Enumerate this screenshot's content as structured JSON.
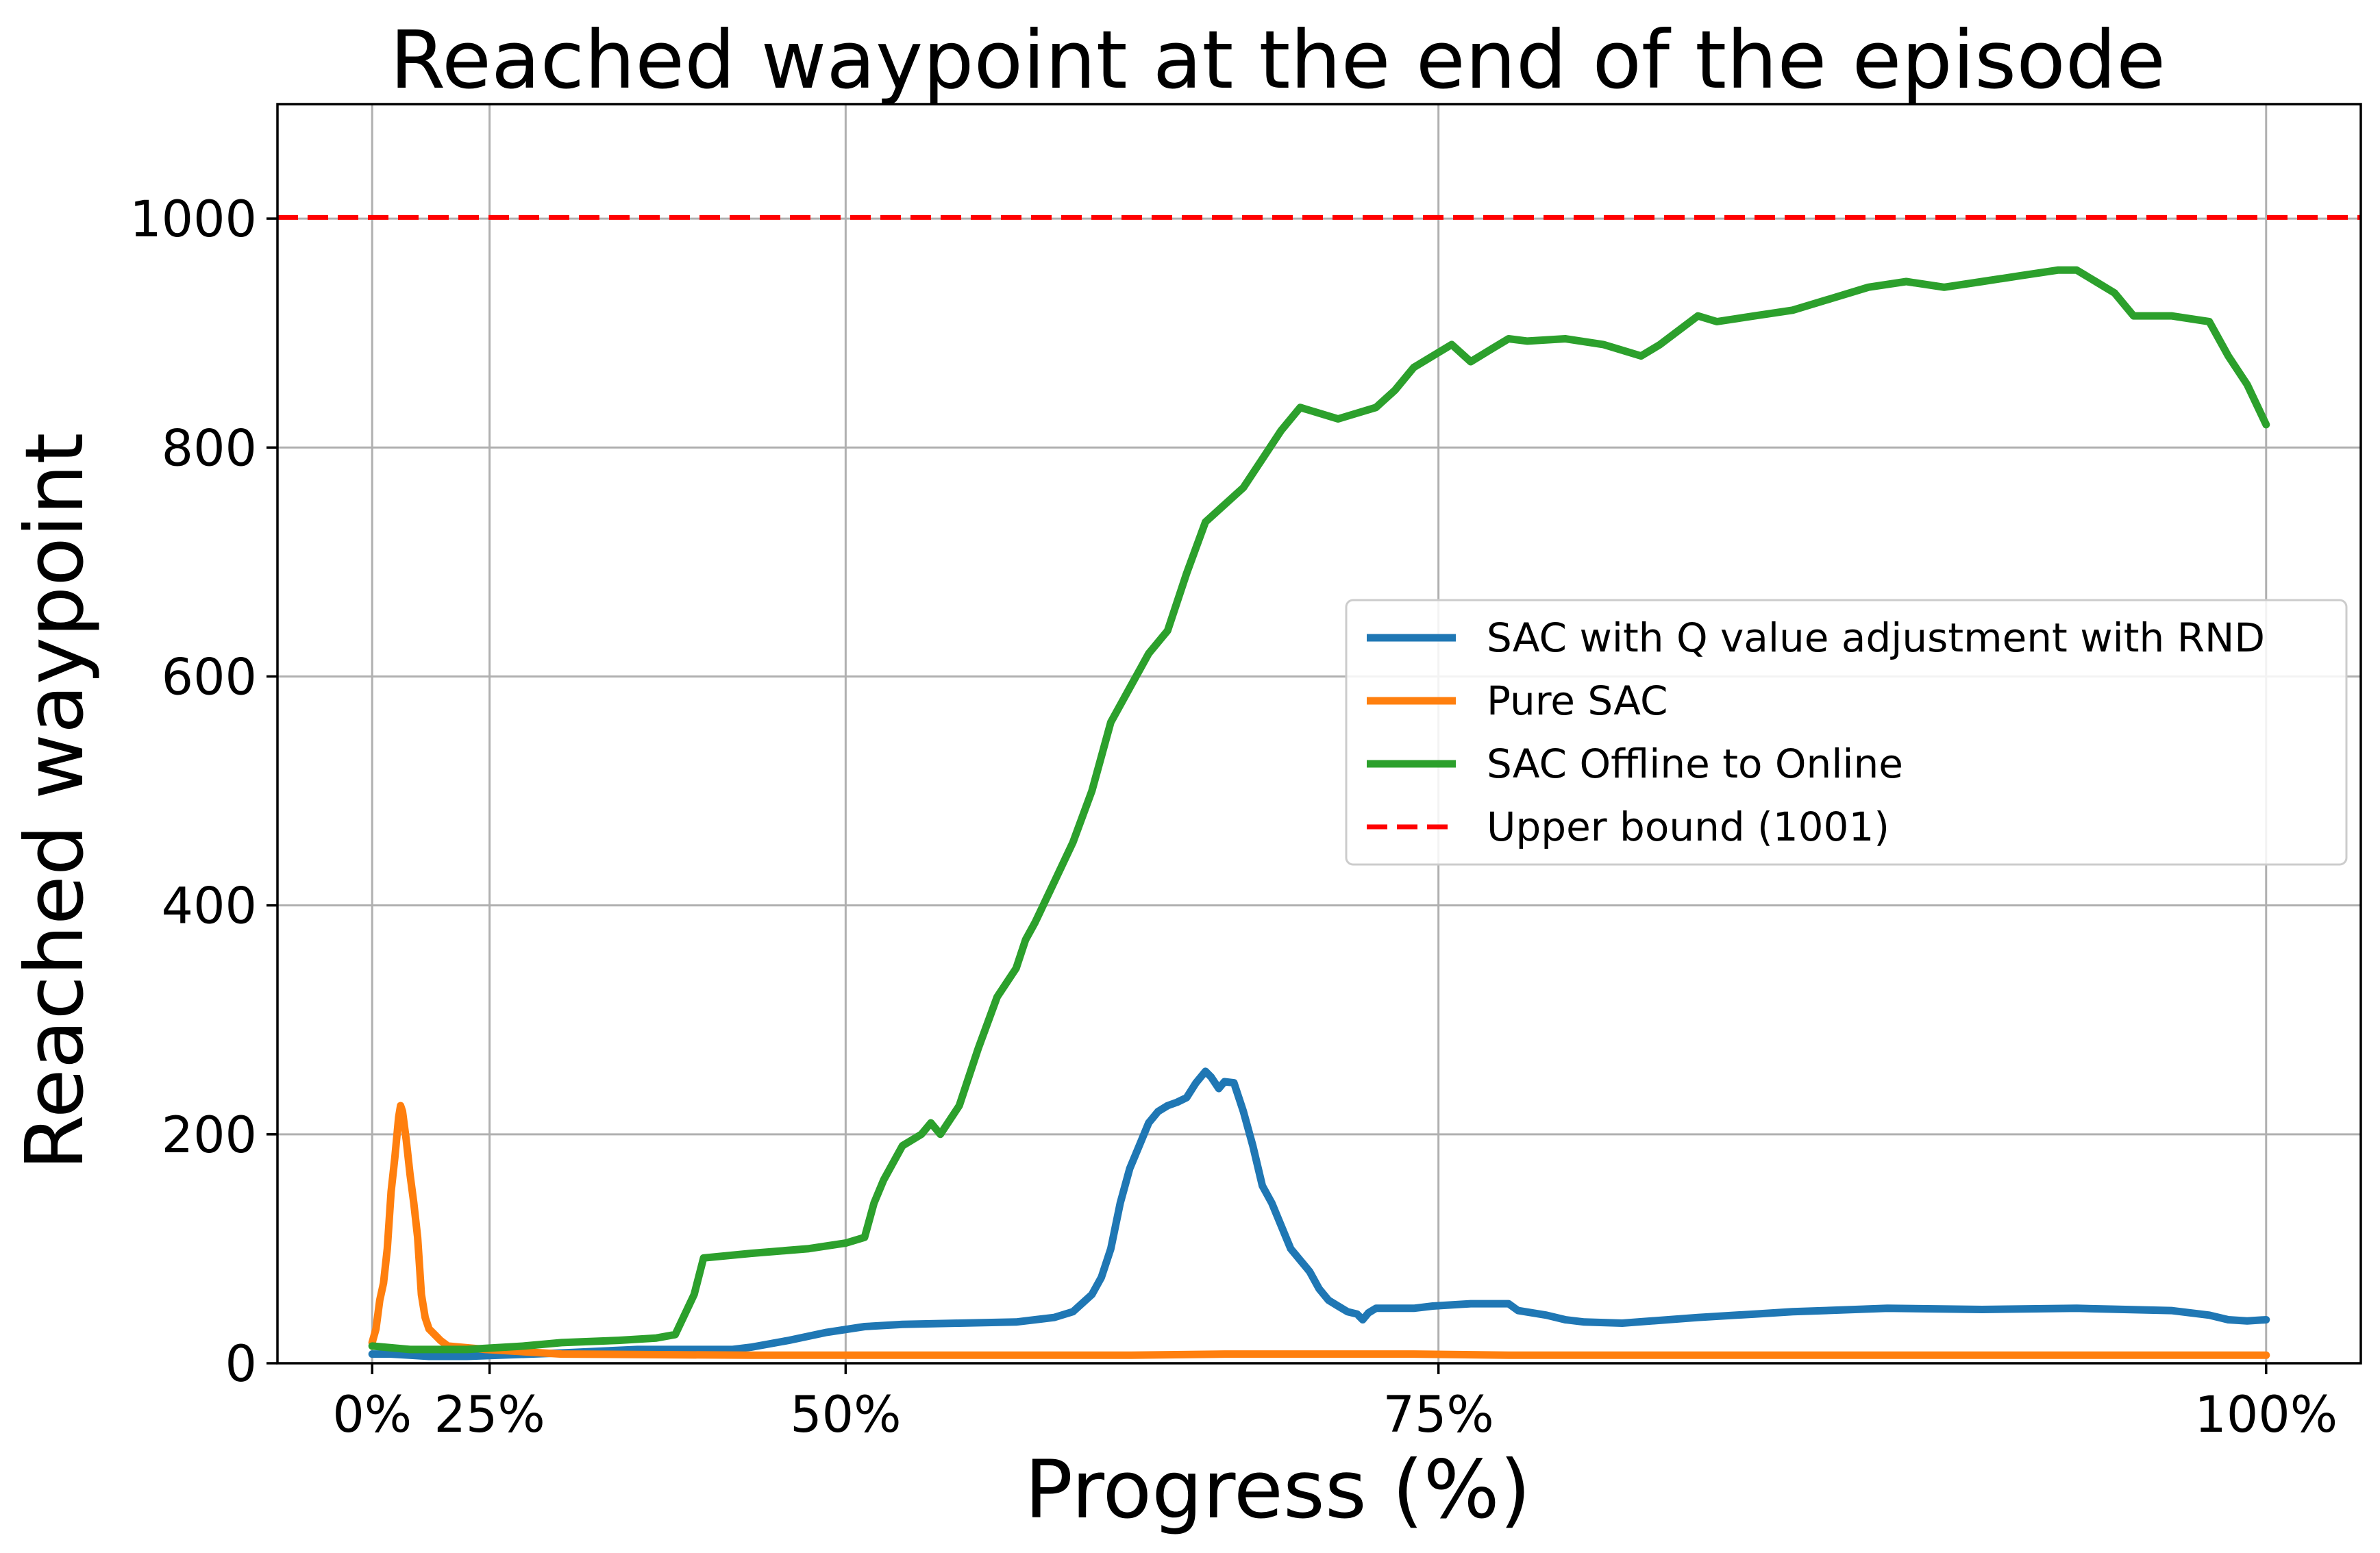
{
  "chart_data": {
    "type": "line",
    "title": "Reached waypoint at the end of the episode",
    "xlabel": "Progress (%)",
    "ylabel": "Reached waypoint",
    "xlim": [
      -5,
      105
    ],
    "ylim": [
      0,
      1100
    ],
    "x_ticks": [
      {
        "value": 0,
        "label": "0%"
      },
      {
        "value": 6.2,
        "label": "25%"
      },
      {
        "value": 25,
        "label": "50%"
      },
      {
        "value": 56.3,
        "label": "75%"
      },
      {
        "value": 100,
        "label": "100%"
      }
    ],
    "y_ticks": [
      {
        "value": 0,
        "label": "0"
      },
      {
        "value": 200,
        "label": "200"
      },
      {
        "value": 400,
        "label": "400"
      },
      {
        "value": 600,
        "label": "600"
      },
      {
        "value": 800,
        "label": "800"
      },
      {
        "value": 1000,
        "label": "1000"
      }
    ],
    "grid": true,
    "legend_position": "center-right",
    "series": [
      {
        "name": "SAC with Q value adjustment with RND",
        "color": "#1f77b4",
        "style": "solid",
        "points": [
          [
            0,
            8
          ],
          [
            1,
            8
          ],
          [
            2,
            7
          ],
          [
            3,
            6
          ],
          [
            5,
            6
          ],
          [
            10,
            9
          ],
          [
            14,
            12
          ],
          [
            19,
            12
          ],
          [
            20,
            14
          ],
          [
            22,
            20
          ],
          [
            24,
            27
          ],
          [
            26,
            32
          ],
          [
            28,
            34
          ],
          [
            31,
            35
          ],
          [
            34,
            36
          ],
          [
            35,
            38
          ],
          [
            36,
            40
          ],
          [
            37,
            45
          ],
          [
            38,
            60
          ],
          [
            38.5,
            75
          ],
          [
            39,
            100
          ],
          [
            39.5,
            140
          ],
          [
            40,
            170
          ],
          [
            40.5,
            190
          ],
          [
            41,
            210
          ],
          [
            41.5,
            220
          ],
          [
            42,
            225
          ],
          [
            42.5,
            228
          ],
          [
            43,
            232
          ],
          [
            43.5,
            245
          ],
          [
            44,
            255
          ],
          [
            44.3,
            250
          ],
          [
            44.7,
            240
          ],
          [
            45,
            246
          ],
          [
            45.5,
            245
          ],
          [
            46,
            220
          ],
          [
            46.5,
            190
          ],
          [
            47,
            155
          ],
          [
            47.5,
            140
          ],
          [
            48,
            120
          ],
          [
            48.5,
            100
          ],
          [
            49,
            90
          ],
          [
            49.5,
            80
          ],
          [
            50,
            65
          ],
          [
            50.5,
            55
          ],
          [
            51,
            50
          ],
          [
            51.5,
            45
          ],
          [
            52,
            43
          ],
          [
            52.3,
            38
          ],
          [
            52.6,
            44
          ],
          [
            53,
            48
          ],
          [
            55,
            48
          ],
          [
            56,
            50
          ],
          [
            58,
            52
          ],
          [
            60,
            52
          ],
          [
            60.5,
            46
          ],
          [
            62,
            42
          ],
          [
            63,
            38
          ],
          [
            64,
            36
          ],
          [
            66,
            35
          ],
          [
            70,
            40
          ],
          [
            73,
            43
          ],
          [
            75,
            45
          ],
          [
            80,
            48
          ],
          [
            85,
            47
          ],
          [
            90,
            48
          ],
          [
            95,
            46
          ],
          [
            97,
            42
          ],
          [
            98,
            38
          ],
          [
            99,
            37
          ],
          [
            100,
            38
          ]
        ]
      },
      {
        "name": "Pure SAC",
        "color": "#ff7f0e",
        "style": "solid",
        "points": [
          [
            0,
            18
          ],
          [
            0.2,
            30
          ],
          [
            0.4,
            55
          ],
          [
            0.6,
            70
          ],
          [
            0.8,
            100
          ],
          [
            1.0,
            150
          ],
          [
            1.2,
            180
          ],
          [
            1.4,
            215
          ],
          [
            1.5,
            225
          ],
          [
            1.6,
            220
          ],
          [
            1.8,
            195
          ],
          [
            2.0,
            165
          ],
          [
            2.2,
            140
          ],
          [
            2.4,
            110
          ],
          [
            2.6,
            60
          ],
          [
            2.8,
            40
          ],
          [
            3.0,
            30
          ],
          [
            3.3,
            25
          ],
          [
            3.6,
            20
          ],
          [
            4,
            15
          ],
          [
            6,
            12
          ],
          [
            10,
            8
          ],
          [
            20,
            7
          ],
          [
            30,
            7
          ],
          [
            40,
            7
          ],
          [
            45,
            8
          ],
          [
            55,
            8
          ],
          [
            60,
            7
          ],
          [
            80,
            7
          ],
          [
            100,
            7
          ]
        ]
      },
      {
        "name": "SAC Offline to Online",
        "color": "#2ca02c",
        "style": "solid",
        "points": [
          [
            0,
            15
          ],
          [
            2,
            12
          ],
          [
            5,
            12
          ],
          [
            8,
            15
          ],
          [
            10,
            18
          ],
          [
            13,
            20
          ],
          [
            15,
            22
          ],
          [
            16,
            25
          ],
          [
            17,
            60
          ],
          [
            17.5,
            92
          ],
          [
            20,
            96
          ],
          [
            23,
            100
          ],
          [
            25,
            105
          ],
          [
            26,
            110
          ],
          [
            26.5,
            140
          ],
          [
            27,
            160
          ],
          [
            28,
            190
          ],
          [
            29,
            200
          ],
          [
            29.5,
            210
          ],
          [
            30,
            200
          ],
          [
            31,
            225
          ],
          [
            32,
            275
          ],
          [
            33,
            320
          ],
          [
            34,
            345
          ],
          [
            34.5,
            370
          ],
          [
            35,
            385
          ],
          [
            36,
            420
          ],
          [
            37,
            455
          ],
          [
            38,
            500
          ],
          [
            39,
            560
          ],
          [
            40,
            590
          ],
          [
            41,
            620
          ],
          [
            42,
            640
          ],
          [
            43,
            690
          ],
          [
            44,
            735
          ],
          [
            45,
            750
          ],
          [
            46,
            765
          ],
          [
            47,
            790
          ],
          [
            48,
            815
          ],
          [
            49,
            835
          ],
          [
            50,
            830
          ],
          [
            51,
            825
          ],
          [
            52,
            830
          ],
          [
            53,
            835
          ],
          [
            54,
            850
          ],
          [
            55,
            870
          ],
          [
            56,
            880
          ],
          [
            57,
            890
          ],
          [
            58,
            875
          ],
          [
            59,
            885
          ],
          [
            60,
            895
          ],
          [
            61,
            893
          ],
          [
            63,
            895
          ],
          [
            65,
            890
          ],
          [
            67,
            880
          ],
          [
            68,
            890
          ],
          [
            70,
            915
          ],
          [
            71,
            910
          ],
          [
            73,
            915
          ],
          [
            75,
            920
          ],
          [
            77,
            930
          ],
          [
            79,
            940
          ],
          [
            81,
            945
          ],
          [
            83,
            940
          ],
          [
            85,
            945
          ],
          [
            87,
            950
          ],
          [
            89,
            955
          ],
          [
            90,
            955
          ],
          [
            91,
            945
          ],
          [
            92,
            935
          ],
          [
            93,
            915
          ],
          [
            95,
            915
          ],
          [
            97,
            910
          ],
          [
            98,
            880
          ],
          [
            99,
            855
          ],
          [
            100,
            820
          ]
        ]
      },
      {
        "name": "Upper bound (1001)",
        "color": "#ff0000",
        "style": "dashed",
        "horizontal": 1001
      }
    ]
  }
}
